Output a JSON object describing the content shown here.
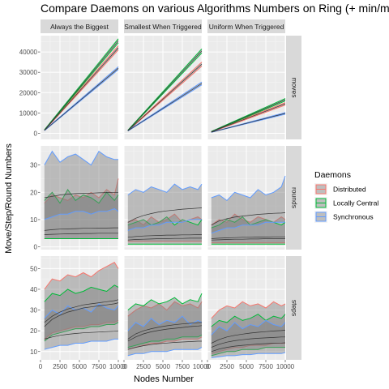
{
  "chart_data": {
    "type": "line",
    "title": "Compare Daemons on various Algorithms Numbers on Ring (+ min/max ribbon)",
    "xlabel": "Nodes Number",
    "ylabel": "Move/Step/Round Numbers",
    "columns": [
      "Always the Biggest",
      "Smallest When Triggered",
      "Uniform When Triggered"
    ],
    "rows": [
      "moves",
      "rounds",
      "steps"
    ],
    "x_ticks": [
      0,
      2500,
      5000,
      7500,
      10000
    ],
    "x_tick_labels": [
      "0",
      "2500",
      "5000",
      "7500",
      "10000"
    ],
    "xlim": [
      0,
      10000
    ],
    "row_axes": [
      {
        "row": "moves",
        "ylim": [
          -3000,
          48000
        ],
        "ticks": [
          0,
          10000,
          20000,
          30000,
          40000
        ]
      },
      {
        "row": "rounds",
        "ylim": [
          -1,
          37
        ],
        "ticks": [
          0,
          10,
          20,
          30
        ]
      },
      {
        "row": "steps",
        "ylim": [
          6,
          56
        ],
        "ticks": [
          10,
          20,
          30,
          40,
          50
        ]
      }
    ],
    "legend": {
      "title": "Daemons",
      "position": "right",
      "entries": [
        {
          "name": "Distributed",
          "color": "#F8766D"
        },
        {
          "name": "Locally Central",
          "color": "#00BA38"
        },
        {
          "name": "Synchronous",
          "color": "#619CFF"
        }
      ]
    },
    "ribbon_summary": {
      "fill": "#7f7f7f",
      "opacity": 0.45
    },
    "series": [
      {
        "col": 0,
        "row": "moves",
        "name": "Distributed",
        "x": [
          500,
          10000
        ],
        "mean": [
          1500,
          42000
        ],
        "min": [
          1400,
          41000
        ],
        "max": [
          1600,
          43000
        ]
      },
      {
        "col": 0,
        "row": "moves",
        "name": "Locally Central",
        "x": [
          500,
          10000
        ],
        "mean": [
          1600,
          45500
        ],
        "min": [
          1500,
          44500
        ],
        "max": [
          1700,
          46500
        ]
      },
      {
        "col": 0,
        "row": "moves",
        "name": "Synchronous",
        "x": [
          500,
          10000
        ],
        "mean": [
          1400,
          32000
        ],
        "min": [
          1300,
          31300
        ],
        "max": [
          1500,
          32700
        ]
      },
      {
        "col": 1,
        "row": "moves",
        "name": "Distributed",
        "x": [
          500,
          10000
        ],
        "mean": [
          1300,
          34000
        ],
        "min": [
          1200,
          33000
        ],
        "max": [
          1400,
          35000
        ]
      },
      {
        "col": 1,
        "row": "moves",
        "name": "Locally Central",
        "x": [
          500,
          10000
        ],
        "mean": [
          1400,
          40500
        ],
        "min": [
          1300,
          39500
        ],
        "max": [
          1500,
          41500
        ]
      },
      {
        "col": 1,
        "row": "moves",
        "name": "Synchronous",
        "x": [
          500,
          10000
        ],
        "mean": [
          1200,
          24500
        ],
        "min": [
          1100,
          23800
        ],
        "max": [
          1300,
          25200
        ]
      },
      {
        "col": 2,
        "row": "moves",
        "name": "Distributed",
        "x": [
          500,
          10000
        ],
        "mean": [
          700,
          14500
        ],
        "min": [
          600,
          13900
        ],
        "max": [
          800,
          15100
        ]
      },
      {
        "col": 2,
        "row": "moves",
        "name": "Locally Central",
        "x": [
          500,
          10000
        ],
        "mean": [
          800,
          16500
        ],
        "min": [
          700,
          15900
        ],
        "max": [
          900,
          17100
        ]
      },
      {
        "col": 2,
        "row": "moves",
        "name": "Synchronous",
        "x": [
          500,
          10000
        ],
        "mean": [
          500,
          9800
        ],
        "min": [
          450,
          9400
        ],
        "max": [
          550,
          10200
        ]
      },
      {
        "col": 0,
        "row": "rounds",
        "name": "Distributed",
        "x": [
          500,
          1500,
          2500,
          3500,
          4500,
          5500,
          6500,
          7500,
          8500,
          9500,
          10000
        ],
        "mean": [
          6,
          6.3,
          6.5,
          6.6,
          6.7,
          6.8,
          6.8,
          6.9,
          6.9,
          7,
          7
        ],
        "min": [
          3,
          3,
          3,
          3,
          3,
          3,
          3,
          3,
          3,
          3,
          3
        ],
        "max": [
          16,
          19,
          18,
          17,
          19,
          18,
          20,
          18,
          21,
          19,
          25
        ]
      },
      {
        "col": 0,
        "row": "rounds",
        "name": "Locally Central",
        "x": [
          500,
          1500,
          2500,
          3500,
          4500,
          5500,
          6500,
          7500,
          8500,
          9500,
          10000
        ],
        "mean": [
          4.5,
          4.6,
          4.7,
          4.8,
          4.8,
          4.9,
          4.9,
          5,
          5,
          5,
          5
        ],
        "min": [
          3,
          3,
          3,
          3,
          3,
          3,
          3,
          3,
          3,
          3,
          3
        ],
        "max": [
          17,
          20,
          16,
          21,
          17,
          19,
          18,
          16,
          20,
          17,
          19
        ]
      },
      {
        "col": 0,
        "row": "rounds",
        "name": "Synchronous",
        "x": [
          500,
          1500,
          2500,
          3500,
          4500,
          5500,
          6500,
          7500,
          8500,
          9500,
          10000
        ],
        "mean": [
          18,
          18.5,
          19,
          19.3,
          19.5,
          19.6,
          19.7,
          19.8,
          19.9,
          20,
          20
        ],
        "min": [
          10,
          11,
          12,
          12,
          13,
          13,
          12,
          13,
          13,
          14,
          13
        ],
        "max": [
          30,
          35,
          31,
          33,
          34,
          32,
          30,
          35,
          33,
          32,
          32
        ]
      },
      {
        "col": 1,
        "row": "rounds",
        "name": "Distributed",
        "x": [
          500,
          1500,
          2500,
          3500,
          4500,
          5500,
          6500,
          7500,
          8500,
          9500,
          10000
        ],
        "mean": [
          3.5,
          3.8,
          4,
          4.1,
          4.2,
          4.3,
          4.3,
          4.4,
          4.4,
          4.5,
          4.5
        ],
        "min": [
          2,
          2,
          2,
          2,
          2,
          2,
          2,
          2,
          2,
          2,
          2
        ],
        "max": [
          9,
          10,
          8,
          11,
          9,
          10,
          12,
          9,
          10,
          11,
          10
        ]
      },
      {
        "col": 1,
        "row": "rounds",
        "name": "Locally Central",
        "x": [
          500,
          1500,
          2500,
          3500,
          4500,
          5500,
          6500,
          7500,
          8500,
          9500,
          10000
        ],
        "mean": [
          2.5,
          2.7,
          2.8,
          2.9,
          3,
          3,
          3.1,
          3.1,
          3.2,
          3.2,
          3.2
        ],
        "min": [
          1,
          1,
          1,
          1,
          1,
          1,
          1,
          1,
          1,
          1,
          1
        ],
        "max": [
          8,
          9,
          10,
          8,
          9,
          11,
          8,
          10,
          9,
          8,
          10
        ]
      },
      {
        "col": 1,
        "row": "rounds",
        "name": "Synchronous",
        "x": [
          500,
          1500,
          2500,
          3500,
          4500,
          5500,
          6500,
          7500,
          8500,
          9500,
          10000
        ],
        "mean": [
          9,
          10.5,
          11.5,
          12.2,
          12.8,
          13.2,
          13.5,
          13.8,
          14,
          14.2,
          14.3
        ],
        "min": [
          6,
          7,
          7,
          8,
          8,
          9,
          9,
          9,
          10,
          10,
          10
        ],
        "max": [
          19,
          21,
          20,
          22,
          21,
          20,
          23,
          21,
          22,
          21,
          23
        ]
      },
      {
        "col": 2,
        "row": "rounds",
        "name": "Distributed",
        "x": [
          500,
          1500,
          2500,
          3500,
          4500,
          5500,
          6500,
          7500,
          8500,
          9500,
          10000
        ],
        "mean": [
          3,
          3.2,
          3.3,
          3.4,
          3.5,
          3.5,
          3.6,
          3.6,
          3.7,
          3.7,
          3.7
        ],
        "min": [
          1.5,
          1.5,
          1.5,
          1.5,
          1.5,
          1.5,
          1.5,
          1.5,
          1.5,
          1.5,
          1.5
        ],
        "max": [
          8,
          10,
          9,
          12,
          10,
          9,
          11,
          10,
          9,
          11,
          10
        ]
      },
      {
        "col": 2,
        "row": "rounds",
        "name": "Locally Central",
        "x": [
          500,
          1500,
          2500,
          3500,
          4500,
          5500,
          6500,
          7500,
          8500,
          9500,
          10000
        ],
        "mean": [
          2.5,
          2.6,
          2.7,
          2.8,
          2.8,
          2.9,
          2.9,
          3,
          3,
          3,
          3
        ],
        "min": [
          1,
          1,
          1,
          1,
          1,
          1,
          1,
          1,
          1,
          1,
          1
        ],
        "max": [
          7,
          8,
          10,
          9,
          11,
          8,
          9,
          10,
          9,
          8,
          9
        ]
      },
      {
        "col": 2,
        "row": "rounds",
        "name": "Synchronous",
        "x": [
          500,
          1500,
          2500,
          3500,
          4500,
          5500,
          6500,
          7500,
          8500,
          9500,
          10000
        ],
        "mean": [
          8,
          9.5,
          10.3,
          10.9,
          11.3,
          11.6,
          11.9,
          12.1,
          12.3,
          12.4,
          12.5
        ],
        "min": [
          5,
          6,
          7,
          7,
          8,
          8,
          8,
          9,
          9,
          9,
          9
        ],
        "max": [
          18,
          19,
          17,
          20,
          19,
          18,
          21,
          19,
          20,
          22,
          26
        ]
      },
      {
        "col": 0,
        "row": "steps",
        "name": "Distributed",
        "x": [
          500,
          1500,
          2500,
          3500,
          4500,
          5500,
          6500,
          7500,
          8500,
          9500,
          10000
        ],
        "mean": [
          24,
          27,
          29,
          30.5,
          31.5,
          32.5,
          33,
          33.5,
          34,
          34.5,
          35
        ],
        "min": [
          16,
          19,
          20,
          21,
          22,
          22,
          23,
          23,
          24,
          24,
          25
        ],
        "max": [
          40,
          45,
          44,
          47,
          46,
          48,
          46,
          49,
          51,
          53,
          50
        ]
      },
      {
        "col": 0,
        "row": "steps",
        "name": "Locally Central",
        "x": [
          500,
          1500,
          2500,
          3500,
          4500,
          5500,
          6500,
          7500,
          8500,
          9500,
          10000
        ],
        "mean": [
          22,
          25.5,
          27.5,
          29,
          30,
          31,
          31.5,
          32,
          32.5,
          33,
          33.5
        ],
        "min": [
          15,
          18,
          19,
          20,
          21,
          21,
          22,
          22,
          23,
          23,
          24
        ],
        "max": [
          34,
          38,
          37,
          40,
          38,
          39,
          41,
          40,
          39,
          42,
          41
        ]
      },
      {
        "col": 0,
        "row": "steps",
        "name": "Synchronous",
        "x": [
          500,
          1500,
          2500,
          3500,
          4500,
          5500,
          6500,
          7500,
          8500,
          9500,
          10000
        ],
        "mean": [
          16,
          17,
          17.8,
          18.3,
          18.7,
          19,
          19.2,
          19.4,
          19.6,
          19.8,
          20
        ],
        "min": [
          11,
          12,
          13,
          13,
          14,
          14,
          15,
          15,
          15,
          16,
          16
        ],
        "max": [
          26,
          30,
          28,
          32,
          30,
          31,
          29,
          33,
          31,
          30,
          32
        ]
      },
      {
        "col": 1,
        "row": "steps",
        "name": "Distributed",
        "x": [
          500,
          1500,
          2500,
          3500,
          4500,
          5500,
          6500,
          7500,
          8500,
          9500,
          10000
        ],
        "mean": [
          15,
          17,
          18.5,
          19.5,
          20.2,
          20.8,
          21.2,
          21.6,
          22,
          22.3,
          22.5
        ],
        "min": [
          11,
          12,
          13,
          14,
          14,
          15,
          15,
          16,
          16,
          16,
          17
        ],
        "max": [
          27,
          30,
          32,
          31,
          33,
          30,
          34,
          32,
          33,
          31,
          34
        ]
      },
      {
        "col": 1,
        "row": "steps",
        "name": "Locally Central",
        "x": [
          500,
          1500,
          2500,
          3500,
          4500,
          5500,
          6500,
          7500,
          8500,
          9500,
          10000
        ],
        "mean": [
          16,
          18.5,
          20,
          21,
          21.8,
          22.4,
          22.9,
          23.3,
          23.6,
          23.9,
          24
        ],
        "min": [
          12,
          13,
          14,
          15,
          15,
          16,
          16,
          17,
          17,
          17,
          18
        ],
        "max": [
          30,
          33,
          32,
          35,
          33,
          34,
          36,
          33,
          35,
          34,
          38
        ]
      },
      {
        "col": 1,
        "row": "steps",
        "name": "Synchronous",
        "x": [
          500,
          1500,
          2500,
          3500,
          4500,
          5500,
          6500,
          7500,
          8500,
          9500,
          10000
        ],
        "mean": [
          11,
          12,
          12.8,
          13.4,
          13.8,
          14.1,
          14.4,
          14.6,
          14.8,
          15,
          15
        ],
        "min": [
          8,
          9,
          9,
          10,
          10,
          10,
          11,
          11,
          11,
          11,
          12
        ],
        "max": [
          20,
          24,
          22,
          26,
          23,
          25,
          24,
          27,
          23,
          25,
          24
        ]
      },
      {
        "col": 2,
        "row": "steps",
        "name": "Distributed",
        "x": [
          500,
          1500,
          2500,
          3500,
          4500,
          5500,
          6500,
          7500,
          8500,
          9500,
          10000
        ],
        "mean": [
          14,
          15.8,
          17,
          17.8,
          18.4,
          18.9,
          19.3,
          19.6,
          19.9,
          20.1,
          20.3
        ],
        "min": [
          9,
          10,
          11,
          12,
          12,
          13,
          13,
          13,
          14,
          14,
          14
        ],
        "max": [
          26,
          30,
          32,
          31,
          34,
          32,
          33,
          31,
          34,
          32,
          33
        ]
      },
      {
        "col": 2,
        "row": "steps",
        "name": "Locally Central",
        "x": [
          500,
          1500,
          2500,
          3500,
          4500,
          5500,
          6500,
          7500,
          8500,
          9500,
          10000
        ],
        "mean": [
          12,
          13.5,
          14.5,
          15.2,
          15.7,
          16.1,
          16.4,
          16.6,
          16.8,
          17,
          17
        ],
        "min": [
          8,
          9,
          10,
          10,
          11,
          11,
          11,
          12,
          12,
          12,
          12
        ],
        "max": [
          22,
          25,
          24,
          27,
          25,
          26,
          28,
          25,
          27,
          26,
          28
        ]
      },
      {
        "col": 2,
        "row": "steps",
        "name": "Synchronous",
        "x": [
          500,
          1500,
          2500,
          3500,
          4500,
          5500,
          6500,
          7500,
          8500,
          9500,
          10000
        ],
        "mean": [
          10,
          11.2,
          12,
          12.6,
          13,
          13.3,
          13.6,
          13.8,
          14,
          14.1,
          14.2
        ],
        "min": [
          7,
          7.5,
          8,
          8,
          8.5,
          8.5,
          9,
          9,
          9,
          9,
          9.5
        ],
        "max": [
          18,
          22,
          20,
          24,
          21,
          23,
          22,
          25,
          23,
          22,
          24
        ]
      }
    ]
  }
}
